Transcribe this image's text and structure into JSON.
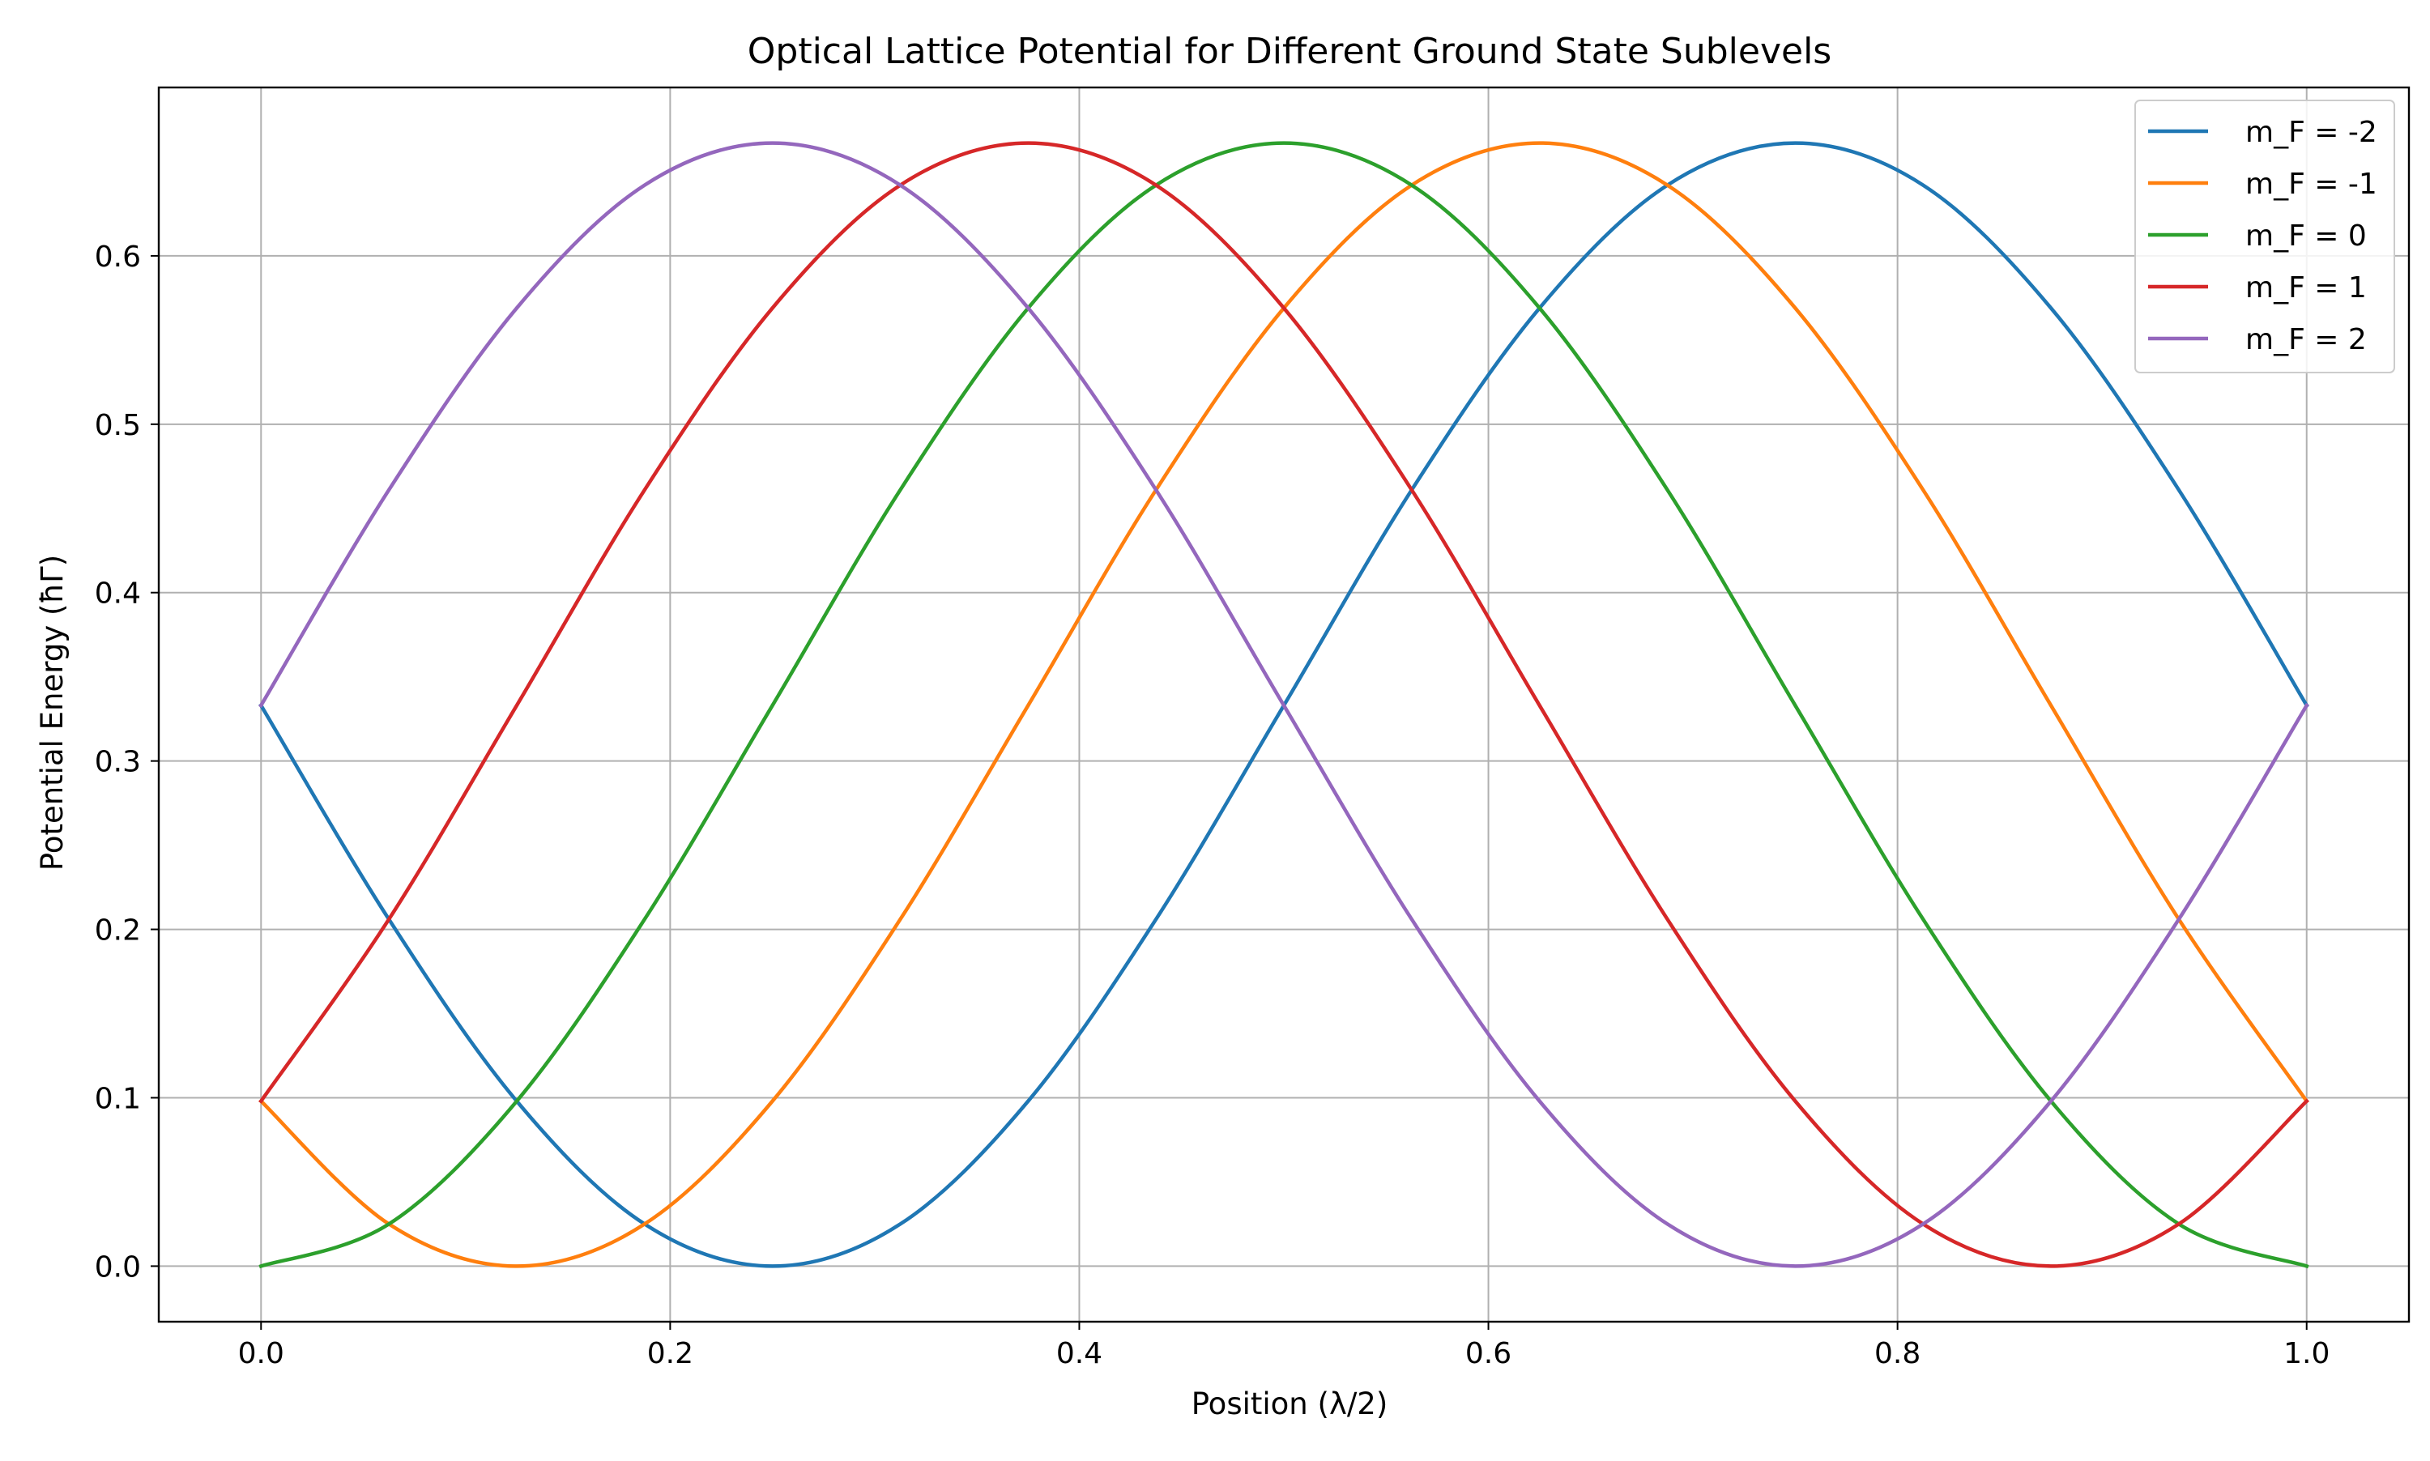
{
  "chart_data": {
    "type": "line",
    "title": "Optical Lattice Potential for Different Ground State Sublevels",
    "xlabel": "Position (λ/2)",
    "ylabel": "Potential Energy (ħΓ)",
    "xlim": [
      -0.05,
      1.05
    ],
    "ylim": [
      -0.033,
      0.7
    ],
    "xticks": [
      0.0,
      0.2,
      0.4,
      0.6,
      0.8,
      1.0
    ],
    "xtick_labels": [
      "0.0",
      "0.2",
      "0.4",
      "0.6",
      "0.8",
      "1.0"
    ],
    "yticks": [
      0.0,
      0.1,
      0.2,
      0.3,
      0.4,
      0.5,
      0.6
    ],
    "ytick_labels": [
      "0.0",
      "0.1",
      "0.2",
      "0.3",
      "0.4",
      "0.5",
      "0.6"
    ],
    "grid": true,
    "legend_position": "top-right",
    "x": [
      0.0,
      0.0625,
      0.125,
      0.1875,
      0.25,
      0.3125,
      0.375,
      0.4375,
      0.5,
      0.5625,
      0.625,
      0.6875,
      0.75,
      0.8125,
      0.875,
      0.9375,
      1.0
    ],
    "series": [
      {
        "name": "m_F = -2",
        "color": "#1f77b4",
        "values": [
          0.333,
          0.206,
          0.098,
          0.025,
          0.0,
          0.025,
          0.098,
          0.206,
          0.333,
          0.461,
          0.569,
          0.642,
          0.667,
          0.642,
          0.569,
          0.461,
          0.333
        ]
      },
      {
        "name": "m_F = -1",
        "color": "#ff7f0e",
        "values": [
          0.098,
          0.025,
          0.0,
          0.025,
          0.098,
          0.206,
          0.333,
          0.461,
          0.569,
          0.642,
          0.667,
          0.642,
          0.569,
          0.461,
          0.333,
          0.206,
          0.098
        ]
      },
      {
        "name": "m_F = 0",
        "color": "#2ca02c",
        "values": [
          0.0,
          0.025,
          0.098,
          0.206,
          0.333,
          0.461,
          0.569,
          0.642,
          0.667,
          0.642,
          0.569,
          0.461,
          0.333,
          0.206,
          0.098,
          0.025,
          0.0
        ]
      },
      {
        "name": "m_F = 1",
        "color": "#d62728",
        "values": [
          0.098,
          0.206,
          0.333,
          0.461,
          0.569,
          0.642,
          0.667,
          0.642,
          0.569,
          0.461,
          0.333,
          0.206,
          0.098,
          0.025,
          0.0,
          0.025,
          0.098
        ]
      },
      {
        "name": "m_F = 2",
        "color": "#9467bd",
        "values": [
          0.333,
          0.461,
          0.569,
          0.642,
          0.667,
          0.642,
          0.569,
          0.461,
          0.333,
          0.206,
          0.098,
          0.025,
          0.0,
          0.025,
          0.098,
          0.206,
          0.333
        ]
      }
    ]
  }
}
